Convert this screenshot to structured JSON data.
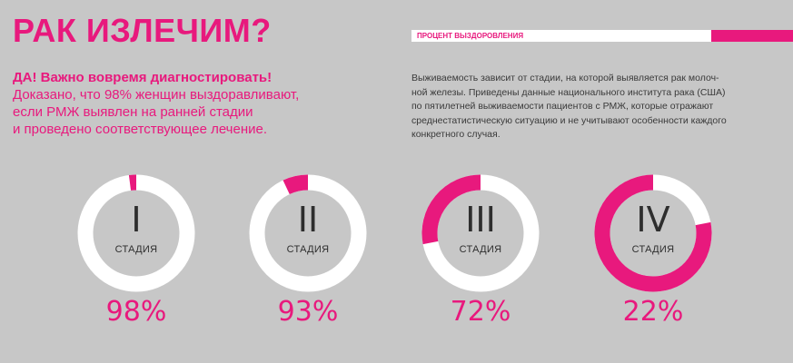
{
  "title": "РАК ИЗЛЕЧИМ?",
  "legend": {
    "label": "ПРОЦЕНТ ВЫЗДОРОВЛЕНИЯ"
  },
  "lead": {
    "strong": "ДА! Важно вовремя диагностировать!",
    "lines": [
      "Доказано, что 98% женщин выздоравливают,",
      "если РМЖ выявлен на ранней стадии",
      "и проведено соответствующее лечение."
    ]
  },
  "description": {
    "lines": [
      "Выживаемость зависит от стадии, на которой выявляется рак молоч-",
      "ной железы. Приведены данные национального института рака (США)",
      "по пятилетней выживаемости пациентов с РМЖ, которые отражают",
      "среднестатистическую ситуацию и не учитывают особенности каждого",
      "конкретного случая."
    ]
  },
  "colors": {
    "accent": "#e8197d",
    "ring_base": "#ffffff",
    "background": "#c7c7c7",
    "inner_circle": "#c7c7c7",
    "text_dark": "#2e2e2e"
  },
  "stages": [
    {
      "numeral": "I",
      "word": "СТАДИЯ",
      "percent_label": "98%",
      "survival": 98
    },
    {
      "numeral": "II",
      "word": "СТАДИЯ",
      "percent_label": "93%",
      "survival": 93
    },
    {
      "numeral": "III",
      "word": "СТАДИЯ",
      "percent_label": "72%",
      "survival": 72
    },
    {
      "numeral": "IV",
      "word": "СТАДИЯ",
      "percent_label": "22%",
      "survival": 22
    }
  ]
}
